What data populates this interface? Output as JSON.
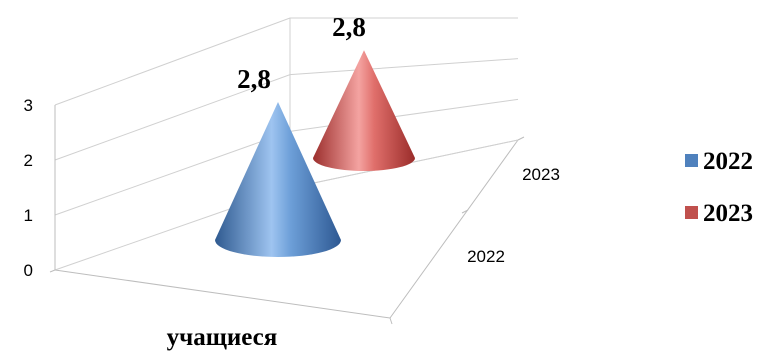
{
  "chart_data": {
    "type": "bar",
    "bar_shape": "cone-3d",
    "categories": [
      "учащиеся"
    ],
    "depth_categories": [
      "2022",
      "2023"
    ],
    "series": [
      {
        "name": "2022",
        "values": [
          2.8
        ],
        "data_label": "2,8",
        "color": "#4F81BD"
      },
      {
        "name": "2023",
        "values": [
          2.8
        ],
        "data_label": "2,8",
        "color": "#C0504D"
      }
    ],
    "y_ticks": [
      "0",
      "1",
      "2",
      "3"
    ],
    "ylim": [
      0,
      3
    ],
    "grid": true,
    "legend_position": "right"
  }
}
